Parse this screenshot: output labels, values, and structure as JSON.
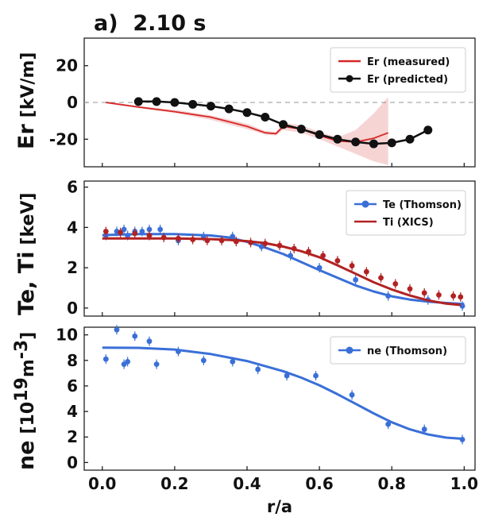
{
  "chart_data": [
    {
      "type": "line",
      "panel_title": "a)  2.10 s",
      "ylabel": "Er",
      "yunit": "[kV/m]",
      "ylim": [
        -35,
        35
      ],
      "xlim": [
        -0.05,
        1.03
      ],
      "yticks": [
        "20",
        "0",
        "-20"
      ],
      "ytick_values": [
        20,
        0,
        -20
      ],
      "zero_line": true,
      "legend_position": "top-right",
      "series": [
        {
          "name": "Er (measured)",
          "color": "#d62728",
          "style": "line-band",
          "x": [
            0.01,
            0.1,
            0.2,
            0.3,
            0.4,
            0.45,
            0.48,
            0.5,
            0.55,
            0.6,
            0.65,
            0.7,
            0.75,
            0.79
          ],
          "y": [
            0,
            -2.5,
            -5,
            -8,
            -13,
            -16.5,
            -17,
            -13,
            -14.5,
            -18,
            -21,
            -21.5,
            -19.5,
            -16.5
          ],
          "band_low": [
            -0.5,
            -3,
            -5.8,
            -9.5,
            -14.5,
            -17.5,
            -18,
            -15,
            -16.5,
            -20,
            -24,
            -28,
            -32,
            -34
          ],
          "band_high": [
            0.5,
            -2,
            -4,
            -7,
            -11.5,
            -15.5,
            -16,
            -11,
            -12.5,
            -16,
            -19,
            -15,
            -6,
            3
          ]
        },
        {
          "name": "Er (predicted)",
          "color": "#111111",
          "style": "line-markers",
          "x": [
            0.1,
            0.15,
            0.2,
            0.25,
            0.3,
            0.35,
            0.4,
            0.45,
            0.5,
            0.55,
            0.6,
            0.65,
            0.7,
            0.75,
            0.8,
            0.85,
            0.9
          ],
          "y": [
            0.5,
            0.5,
            0,
            -1,
            -2,
            -3.5,
            -5.5,
            -8,
            -12,
            -14.5,
            -17.5,
            -20,
            -21.5,
            -22.5,
            -22,
            -20,
            -15
          ]
        }
      ]
    },
    {
      "type": "line",
      "ylabel": "Te, Ti",
      "yunit": "[keV]",
      "ylim": [
        -0.4,
        6.3
      ],
      "xlim": [
        -0.05,
        1.03
      ],
      "yticks": [
        "6",
        "4",
        "2",
        "0"
      ],
      "ytick_values": [
        6,
        4,
        2,
        0
      ],
      "legend_position": "top-right",
      "series": [
        {
          "name": "Te (Thomson)",
          "color": "#3a6fd8",
          "fit_x": [
            0.0,
            0.1,
            0.2,
            0.3,
            0.35,
            0.4,
            0.45,
            0.5,
            0.55,
            0.6,
            0.65,
            0.7,
            0.75,
            0.8,
            0.85,
            0.9,
            0.95,
            1.0
          ],
          "fit_y": [
            3.62,
            3.67,
            3.67,
            3.6,
            3.5,
            3.28,
            3.0,
            2.68,
            2.28,
            1.88,
            1.5,
            1.12,
            0.82,
            0.58,
            0.42,
            0.32,
            0.25,
            0.2
          ],
          "points_x": [
            0.01,
            0.04,
            0.06,
            0.07,
            0.09,
            0.11,
            0.13,
            0.16,
            0.21,
            0.28,
            0.36,
            0.44,
            0.52,
            0.6,
            0.7,
            0.79,
            0.9,
            0.995
          ],
          "points_y": [
            3.6,
            3.8,
            3.9,
            3.6,
            3.8,
            3.8,
            3.9,
            3.9,
            3.35,
            3.55,
            3.55,
            3.05,
            2.6,
            2.0,
            1.4,
            0.6,
            0.4,
            0.1
          ]
        },
        {
          "name": "Ti (XICS)",
          "color": "#b22222",
          "fit_x": [
            0.0,
            0.1,
            0.2,
            0.3,
            0.35,
            0.4,
            0.45,
            0.5,
            0.55,
            0.6,
            0.65,
            0.7,
            0.75,
            0.8,
            0.85,
            0.9,
            0.95,
            0.99
          ],
          "fit_y": [
            3.45,
            3.45,
            3.45,
            3.42,
            3.38,
            3.32,
            3.22,
            3.05,
            2.82,
            2.52,
            2.12,
            1.7,
            1.28,
            0.92,
            0.62,
            0.38,
            0.22,
            0.15
          ],
          "points_x": [
            0.01,
            0.05,
            0.09,
            0.13,
            0.17,
            0.21,
            0.25,
            0.29,
            0.33,
            0.37,
            0.41,
            0.45,
            0.49,
            0.53,
            0.57,
            0.61,
            0.65,
            0.69,
            0.73,
            0.77,
            0.81,
            0.85,
            0.89,
            0.93,
            0.97,
            0.99
          ],
          "points_y": [
            3.8,
            3.75,
            3.7,
            3.6,
            3.5,
            3.45,
            3.4,
            3.35,
            3.35,
            3.3,
            3.25,
            3.2,
            3.1,
            2.95,
            2.8,
            2.6,
            2.35,
            2.1,
            1.8,
            1.5,
            1.2,
            0.95,
            0.75,
            0.65,
            0.6,
            0.55
          ]
        }
      ]
    },
    {
      "type": "line",
      "ylabel": "ne",
      "yunit_prefix": "[10",
      "yunit_sup1": "19",
      "yunit_mid": "m",
      "yunit_sup2": "-3",
      "yunit_suffix": "]",
      "xlabel": "r/a",
      "ylim": [
        -0.6,
        10.6
      ],
      "xlim": [
        -0.05,
        1.03
      ],
      "yticks": [
        "10",
        "8",
        "6",
        "4",
        "2",
        "0"
      ],
      "ytick_values": [
        10,
        8,
        6,
        4,
        2,
        0
      ],
      "xticks": [
        "0.0",
        "0.2",
        "0.4",
        "0.6",
        "0.8",
        "1.0"
      ],
      "xtick_values": [
        0,
        0.2,
        0.4,
        0.6,
        0.8,
        1.0
      ],
      "legend_position": "top-right",
      "series": [
        {
          "name": "ne (Thomson)",
          "color": "#3a6fd8",
          "fit_x": [
            0.0,
            0.1,
            0.2,
            0.3,
            0.4,
            0.5,
            0.55,
            0.6,
            0.65,
            0.7,
            0.75,
            0.8,
            0.85,
            0.9,
            0.95,
            1.0
          ],
          "fit_y": [
            9.0,
            8.98,
            8.85,
            8.5,
            7.95,
            7.15,
            6.65,
            6.05,
            5.35,
            4.6,
            3.85,
            3.15,
            2.6,
            2.2,
            1.95,
            1.85
          ],
          "points_x": [
            0.01,
            0.04,
            0.06,
            0.07,
            0.09,
            0.13,
            0.15,
            0.21,
            0.28,
            0.36,
            0.43,
            0.51,
            0.59,
            0.69,
            0.79,
            0.89,
            0.995
          ],
          "points_y": [
            8.1,
            10.4,
            7.7,
            7.9,
            9.9,
            9.5,
            7.7,
            8.7,
            8.0,
            7.9,
            7.3,
            6.8,
            6.8,
            5.3,
            3.0,
            2.6,
            1.8
          ]
        }
      ]
    }
  ]
}
